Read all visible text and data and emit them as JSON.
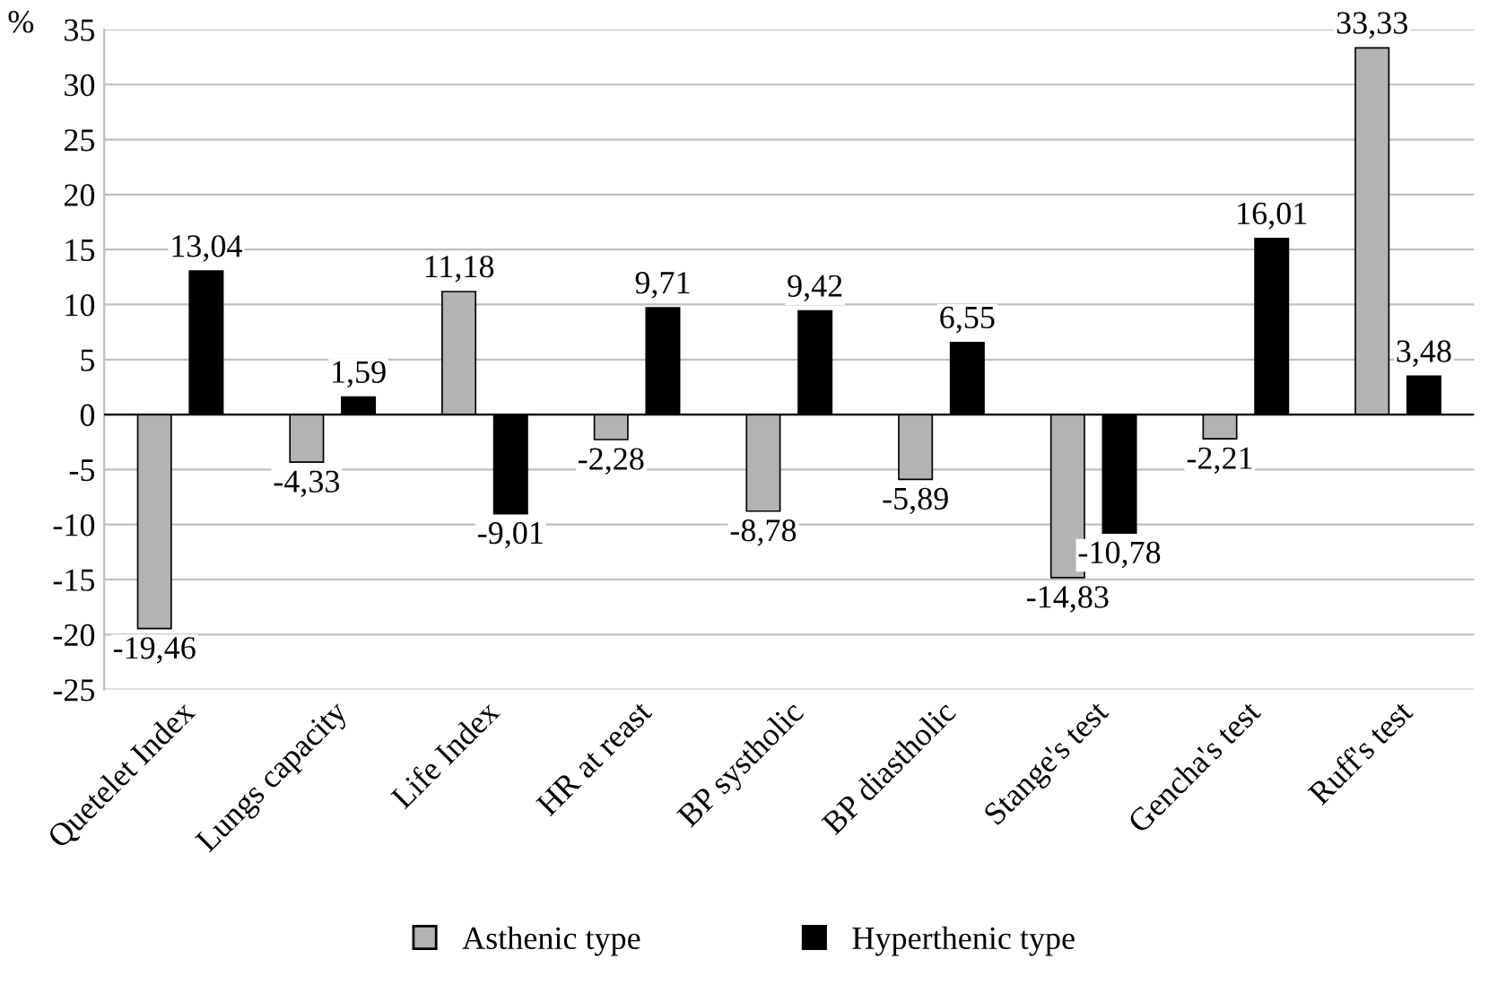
{
  "chart_data": {
    "type": "bar",
    "ylabel": "%",
    "categories": [
      "Quetelet Index",
      "Lungs capacity",
      "Life Index",
      "HR at reast",
      "BP systholic",
      "BP diastholic",
      "Stange's test",
      "Gencha's test",
      "Ruff's test"
    ],
    "series": [
      {
        "name": "Asthenic type",
        "color": "#b3b3b3",
        "values": [
          -19.46,
          -4.33,
          11.18,
          -2.28,
          -8.78,
          -5.89,
          -14.83,
          -2.21,
          33.33
        ],
        "value_labels": [
          "-19,46",
          "-4,33",
          "11,18",
          "-2,28",
          "-8,78",
          "-5,89",
          "-14,83",
          "-2,21",
          "33,33"
        ]
      },
      {
        "name": "Hyperthenic type",
        "color": "#000000",
        "values": [
          13.04,
          1.59,
          -9.01,
          9.71,
          9.42,
          6.55,
          -10.78,
          16.01,
          3.48
        ],
        "value_labels": [
          "13,04",
          "1,59",
          "-9,01",
          "9,71",
          "9,42",
          "6,55",
          "-10,78",
          "16,01",
          "3,48"
        ]
      }
    ],
    "ylim": [
      -25,
      35
    ],
    "yticks": [
      -25,
      -20,
      -15,
      -10,
      -5,
      0,
      5,
      10,
      15,
      20,
      25,
      30,
      35
    ],
    "grid": "y",
    "legend": "bottom"
  }
}
